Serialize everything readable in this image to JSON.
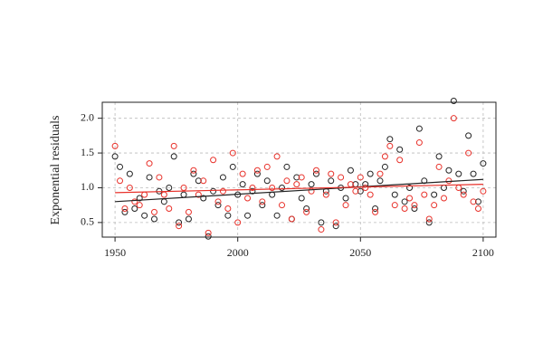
{
  "chart_data": {
    "type": "scatter",
    "y_label": "Exponential residuals",
    "x": [
      1950,
      1952,
      1954,
      1956,
      1958,
      1960,
      1962,
      1964,
      1966,
      1968,
      1970,
      1972,
      1974,
      1976,
      1978,
      1980,
      1982,
      1984,
      1986,
      1988,
      1990,
      1992,
      1994,
      1996,
      1998,
      2000,
      2002,
      2004,
      2006,
      2008,
      2010,
      2012,
      2014,
      2016,
      2018,
      2020,
      2022,
      2024,
      2026,
      2028,
      2030,
      2032,
      2034,
      2036,
      2038,
      2040,
      2042,
      2044,
      2046,
      2048,
      2050,
      2052,
      2054,
      2056,
      2058,
      2060,
      2062,
      2064,
      2066,
      2068,
      2070,
      2072,
      2074,
      2076,
      2078,
      2080,
      2082,
      2084,
      2086,
      2088,
      2090,
      2092,
      2094,
      2096,
      2098,
      2100
    ],
    "series": [
      {
        "color": "#222222",
        "values": [
          1.45,
          1.3,
          0.65,
          1.2,
          0.7,
          0.85,
          0.6,
          1.15,
          0.55,
          0.95,
          0.8,
          1.0,
          1.45,
          0.5,
          0.9,
          0.55,
          1.2,
          1.1,
          0.85,
          0.3,
          0.95,
          0.75,
          1.15,
          0.6,
          1.3,
          0.9,
          1.05,
          0.6,
          0.95,
          1.2,
          0.75,
          1.1,
          0.9,
          0.6,
          1.0,
          1.3,
          0.55,
          1.15,
          0.85,
          0.7,
          1.05,
          1.2,
          0.5,
          0.95,
          1.1,
          0.45,
          1.0,
          0.85,
          1.25,
          1.05,
          0.95,
          1.05,
          1.2,
          0.7,
          1.1,
          1.3,
          1.7,
          0.9,
          1.55,
          0.8,
          1.0,
          0.7,
          1.85,
          1.1,
          0.5,
          0.9,
          1.45,
          1.0,
          1.25,
          2.25,
          1.2,
          0.95,
          1.75,
          1.2,
          0.8,
          1.35
        ]
      },
      {
        "color": "#e8312a",
        "values": [
          1.6,
          1.1,
          0.7,
          1.0,
          0.8,
          0.75,
          0.9,
          1.35,
          0.65,
          1.15,
          0.9,
          0.7,
          1.6,
          0.45,
          1.0,
          0.65,
          1.25,
          0.9,
          1.1,
          0.35,
          1.4,
          0.8,
          0.95,
          0.7,
          1.5,
          0.5,
          1.2,
          0.85,
          1.0,
          1.25,
          0.8,
          1.3,
          1.0,
          1.45,
          0.75,
          1.1,
          0.55,
          1.05,
          1.15,
          0.65,
          0.95,
          1.25,
          0.4,
          0.9,
          1.2,
          0.5,
          1.15,
          0.75,
          1.05,
          0.95,
          1.15,
          1.0,
          0.9,
          0.65,
          1.2,
          1.45,
          1.6,
          0.75,
          1.4,
          0.7,
          0.85,
          0.75,
          1.65,
          0.9,
          0.55,
          0.75,
          1.3,
          0.85,
          1.1,
          2.0,
          1.0,
          0.9,
          1.5,
          0.8,
          0.7,
          0.95
        ]
      }
    ],
    "trend_lines": [
      {
        "color": "#222222",
        "x": [
          1950,
          2100
        ],
        "values": [
          0.8,
          1.12
        ]
      },
      {
        "color": "#e8312a",
        "x": [
          1950,
          2100
        ],
        "values": [
          0.93,
          1.05
        ]
      }
    ],
    "xlim": [
      1944.8,
      2105.2
    ],
    "ylim": [
      0.29,
      2.23
    ],
    "xticks": [
      1950,
      2000,
      2050,
      2100
    ],
    "yticks": [
      {
        "value": 0.5,
        "label": "0.5"
      },
      {
        "value": 1,
        "label": "1.0"
      },
      {
        "value": 1.5,
        "label": "1.5"
      },
      {
        "value": 2,
        "label": "2.0"
      }
    ],
    "grid": true
  }
}
